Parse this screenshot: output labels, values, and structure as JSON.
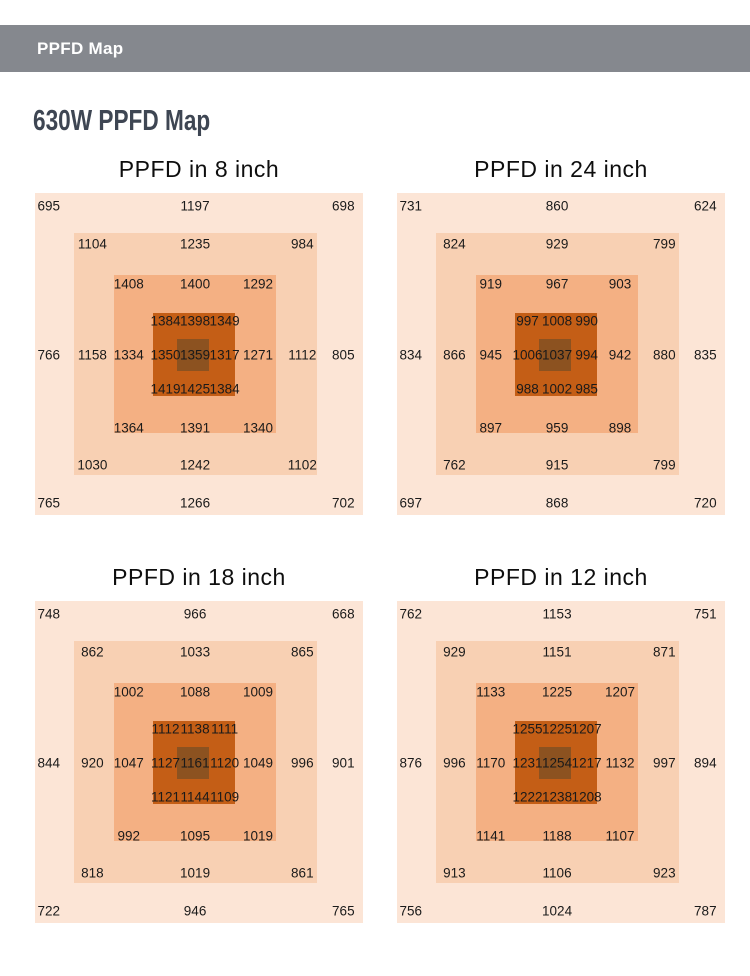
{
  "topbar": {
    "title": "PPFD Map"
  },
  "page": {
    "heading": "630W PPFD Map"
  },
  "colors": {
    "ring1_bg": "#fce5d6",
    "ring2_bg": "#f8d0b3",
    "ring3_bg": "#f4b083",
    "core_bg": "#c45e16",
    "center_bg": "#8c5220",
    "topbar_bg": "#85888e",
    "heading_text": "#3e4653"
  },
  "chart_data": [
    {
      "type": "heatmap",
      "title": "PPFD in 8 inch",
      "layout": "nested concentric squares, PPFD values from outer edge to center",
      "rings": {
        "r1": {
          "tl": 695,
          "tc": 1197,
          "tr": 698,
          "ml": 766,
          "mr": 805,
          "bl": 765,
          "bc": 1266,
          "br": 702
        },
        "r2": {
          "tl": 1104,
          "tc": 1235,
          "tr": 984,
          "ml": 1158,
          "mr": 1112,
          "bl": 1030,
          "bc": 1242,
          "br": 1102
        },
        "r3": {
          "tl": 1408,
          "tc": 1400,
          "tr": 1292,
          "ml": 1334,
          "mr": 1271,
          "bl": 1364,
          "bc": 1391,
          "br": 1340
        },
        "core": {
          "t1": 1384,
          "t2": 1398,
          "t3": 1349,
          "m1": 1350,
          "c": 1359,
          "m3": 1317,
          "b1": 1419,
          "b2": 1425,
          "b3": 1384
        }
      }
    },
    {
      "type": "heatmap",
      "title": "PPFD in 24 inch",
      "layout": "nested concentric squares, PPFD values from outer edge to center",
      "rings": {
        "r1": {
          "tl": 731,
          "tc": 860,
          "tr": 624,
          "ml": 834,
          "mr": 835,
          "bl": 697,
          "bc": 868,
          "br": 720
        },
        "r2": {
          "tl": 824,
          "tc": 929,
          "tr": 799,
          "ml": 866,
          "mr": 880,
          "bl": 762,
          "bc": 915,
          "br": 799
        },
        "r3": {
          "tl": 919,
          "tc": 967,
          "tr": 903,
          "ml": 945,
          "mr": 942,
          "bl": 897,
          "bc": 959,
          "br": 898
        },
        "core": {
          "t1": 997,
          "t2": 1008,
          "t3": 990,
          "m1": 1006,
          "c": 1037,
          "m3": 994,
          "b1": 988,
          "b2": 1002,
          "b3": 985
        }
      }
    },
    {
      "type": "heatmap",
      "title": "PPFD in 18 inch",
      "layout": "nested concentric squares, PPFD values from outer edge to center",
      "rings": {
        "r1": {
          "tl": 748,
          "tc": 966,
          "tr": 668,
          "ml": 844,
          "mr": 901,
          "bl": 722,
          "bc": 946,
          "br": 765
        },
        "r2": {
          "tl": 862,
          "tc": 1033,
          "tr": 865,
          "ml": 920,
          "mr": 996,
          "bl": 818,
          "bc": 1019,
          "br": 861
        },
        "r3": {
          "tl": 1002,
          "tc": 1088,
          "tr": 1009,
          "ml": 1047,
          "mr": 1049,
          "bl": 992,
          "bc": 1095,
          "br": 1019
        },
        "core": {
          "t1": 1112,
          "t2": 1138,
          "t3": 1111,
          "m1": 1127,
          "c": 1161,
          "m3": 1120,
          "b1": 1121,
          "b2": 1144,
          "b3": 1109
        }
      }
    },
    {
      "type": "heatmap",
      "title": "PPFD in 12 inch",
      "layout": "nested concentric squares, PPFD values from outer edge to center",
      "rings": {
        "r1": {
          "tl": 762,
          "tc": 1153,
          "tr": 751,
          "ml": 876,
          "mr": 894,
          "bl": 756,
          "bc": 1024,
          "br": 787
        },
        "r2": {
          "tl": 929,
          "tc": 1151,
          "tr": 871,
          "ml": 996,
          "mr": 997,
          "bl": 913,
          "bc": 1106,
          "br": 923
        },
        "r3": {
          "tl": 1133,
          "tc": 1225,
          "tr": 1207,
          "ml": 1170,
          "mr": 1132,
          "bl": 1141,
          "bc": 1188,
          "br": 1107
        },
        "core": {
          "t1": 1255,
          "t2": 1225,
          "t3": 1207,
          "m1": 1231,
          "c": 1254,
          "m3": 1217,
          "b1": 1222,
          "b2": 1238,
          "b3": 1208
        }
      }
    }
  ]
}
